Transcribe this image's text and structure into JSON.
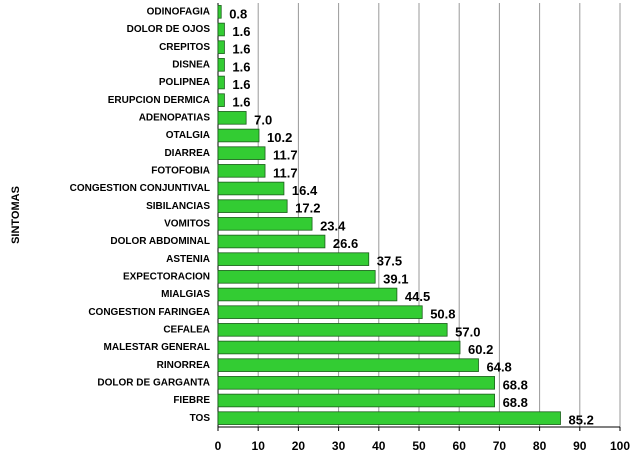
{
  "chart_data": {
    "type": "barh",
    "y_label": "SINTOMAS",
    "categories": [
      "ODINOFAGIA",
      "DOLOR DE OJOS",
      "CREPITOS",
      "DISNEA",
      "POLIPNEA",
      "ERUPCION DERMICA",
      "ADENOPATIAS",
      "OTALGIA",
      "DIARREA",
      "FOTOFOBIA",
      "CONGESTION CONJUNTIVAL",
      "SIBILANCIAS",
      "VOMITOS",
      "DOLOR ABDOMINAL",
      "ASTENIA",
      "EXPECTORACION",
      "MIALGIAS",
      "CONGESTION FARINGEA",
      "CEFALEA",
      "MALESTAR GENERAL",
      "RINORREA",
      "DOLOR DE GARGANTA",
      "FIEBRE",
      "TOS"
    ],
    "values": [
      0.8,
      1.6,
      1.6,
      1.6,
      1.6,
      1.6,
      7.0,
      10.2,
      11.7,
      11.7,
      16.4,
      17.2,
      23.4,
      26.6,
      37.5,
      39.1,
      44.5,
      50.8,
      57.0,
      60.2,
      64.8,
      68.8,
      68.8,
      85.2
    ],
    "value_labels": [
      "0.8",
      "1.6",
      "1.6",
      "1.6",
      "1.6",
      "1.6",
      "7.0",
      "10.2",
      "11.7",
      "11.7",
      "16.4",
      "17.2",
      "23.4",
      "26.6",
      "37.5",
      "39.1",
      "44.5",
      "50.8",
      "57.0",
      "60.2",
      "64.8",
      "68.8",
      "68.8",
      "85.2"
    ],
    "color": "#33cc33",
    "xlim": [
      0,
      100
    ],
    "xticks": [
      0,
      10,
      20,
      30,
      40,
      50,
      60,
      70,
      80,
      90,
      100
    ],
    "grid": true
  }
}
